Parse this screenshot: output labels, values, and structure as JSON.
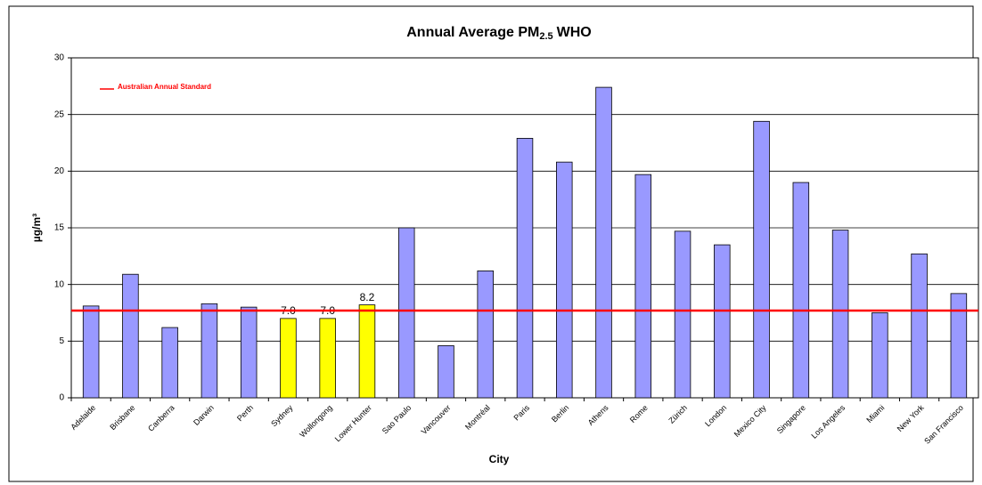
{
  "chart_data": {
    "type": "bar",
    "title": "Annual Average PM",
    "title_subscript": "2.5",
    "title_suffix": "WHO",
    "y_label": "µg/m³",
    "x_label": "City",
    "categories": [
      "Adelaide",
      "Brisbane",
      "Canberra",
      "Darwin",
      "Perth",
      "Sydney",
      "Wollongong",
      "Lower Hunter",
      "Sao Paulo",
      "Vancouver",
      "Montréal",
      "Paris",
      "Berlin",
      "Athens",
      "Rome",
      "Zürich",
      "London",
      "Mexico City",
      "Singapore",
      "Los Angeles",
      "Miami",
      "New York",
      "San Francisco"
    ],
    "values": [
      8.1,
      10.9,
      6.2,
      8.3,
      8.0,
      7.0,
      7.0,
      8.2,
      15.0,
      4.6,
      11.2,
      22.9,
      20.8,
      27.4,
      19.7,
      14.7,
      13.5,
      24.4,
      19.0,
      14.8,
      7.5,
      12.7,
      9.2
    ],
    "value_labels": [
      null,
      null,
      null,
      null,
      null,
      "7.0",
      "7.0",
      "8.2",
      null,
      null,
      null,
      null,
      null,
      null,
      null,
      null,
      null,
      null,
      null,
      null,
      null,
      null,
      null
    ],
    "colors": [
      "#9999ff",
      "#9999ff",
      "#9999ff",
      "#9999ff",
      "#9999ff",
      "#ffff00",
      "#ffff00",
      "#ffff00",
      "#9999ff",
      "#9999ff",
      "#9999ff",
      "#9999ff",
      "#9999ff",
      "#9999ff",
      "#9999ff",
      "#9999ff",
      "#9999ff",
      "#9999ff",
      "#9999ff",
      "#9999ff",
      "#9999ff",
      "#9999ff",
      "#9999ff"
    ],
    "reference_line": {
      "name": "Australian Annual Standard",
      "value": 7.7,
      "color": "#ff0000"
    },
    "ylim": [
      0,
      30
    ],
    "yticks": [
      0,
      5,
      10,
      15,
      20,
      25,
      30
    ],
    "grid": true
  }
}
